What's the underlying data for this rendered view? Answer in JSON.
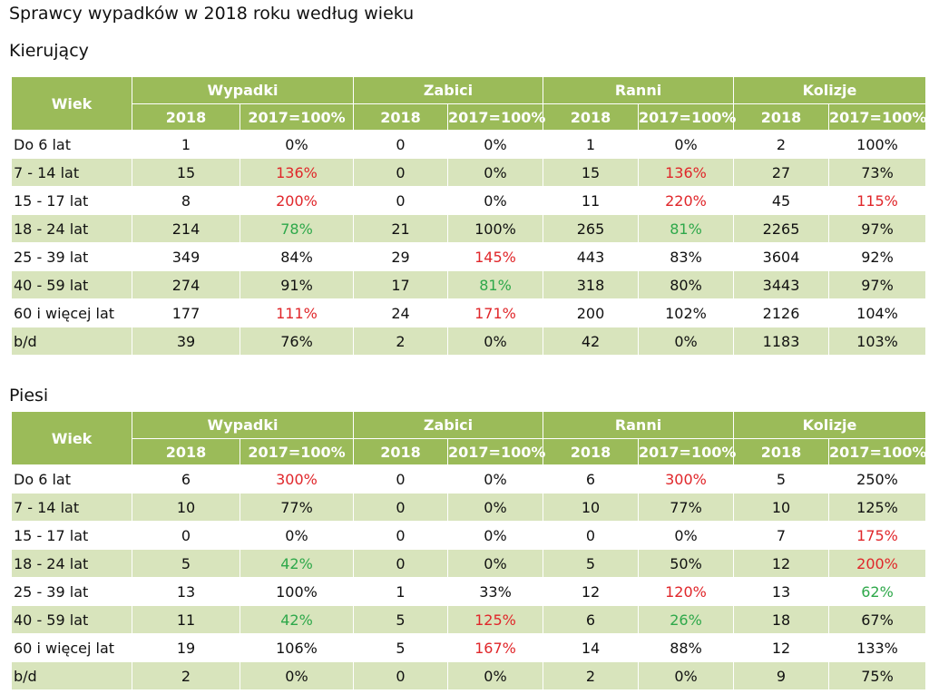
{
  "title": "Sprawcy wypadków w 2018 roku według wieku",
  "header": {
    "age": "Wiek",
    "groups": [
      "Wypadki",
      "Zabici",
      "Ranni",
      "Kolizje"
    ],
    "year": "2018",
    "ratio": "2017=100%"
  },
  "colors": {
    "header_bg": "#9bbb59",
    "alt_row": "#d8e4bc",
    "increase": "#e0262a",
    "decrease": "#2ea84a"
  },
  "tables": [
    {
      "title": "Kierujący",
      "rows": [
        {
          "age": "Do 6 lat",
          "cells": [
            {
              "v": "1"
            },
            {
              "v": "0%"
            },
            {
              "v": "0"
            },
            {
              "v": "0%"
            },
            {
              "v": "1"
            },
            {
              "v": "0%"
            },
            {
              "v": "2"
            },
            {
              "v": "100%"
            }
          ]
        },
        {
          "age": "7 - 14 lat",
          "cells": [
            {
              "v": "15"
            },
            {
              "v": "136%",
              "c": "red"
            },
            {
              "v": "0"
            },
            {
              "v": "0%"
            },
            {
              "v": "15"
            },
            {
              "v": "136%",
              "c": "red"
            },
            {
              "v": "27"
            },
            {
              "v": "73%"
            }
          ]
        },
        {
          "age": "15 - 17 lat",
          "cells": [
            {
              "v": "8"
            },
            {
              "v": "200%",
              "c": "red"
            },
            {
              "v": "0"
            },
            {
              "v": "0%"
            },
            {
              "v": "11"
            },
            {
              "v": "220%",
              "c": "red"
            },
            {
              "v": "45"
            },
            {
              "v": "115%",
              "c": "red"
            }
          ]
        },
        {
          "age": "18 - 24 lat",
          "cells": [
            {
              "v": "214"
            },
            {
              "v": "78%",
              "c": "green"
            },
            {
              "v": "21"
            },
            {
              "v": "100%"
            },
            {
              "v": "265"
            },
            {
              "v": "81%",
              "c": "green"
            },
            {
              "v": "2265"
            },
            {
              "v": "97%"
            }
          ]
        },
        {
          "age": "25 - 39 lat",
          "cells": [
            {
              "v": "349"
            },
            {
              "v": "84%"
            },
            {
              "v": "29"
            },
            {
              "v": "145%",
              "c": "red"
            },
            {
              "v": "443"
            },
            {
              "v": "83%"
            },
            {
              "v": "3604"
            },
            {
              "v": "92%"
            }
          ]
        },
        {
          "age": "40 - 59 lat",
          "cells": [
            {
              "v": "274"
            },
            {
              "v": "91%"
            },
            {
              "v": "17"
            },
            {
              "v": "81%",
              "c": "green"
            },
            {
              "v": "318"
            },
            {
              "v": "80%"
            },
            {
              "v": "3443"
            },
            {
              "v": "97%"
            }
          ]
        },
        {
          "age": "60 i więcej lat",
          "cells": [
            {
              "v": "177"
            },
            {
              "v": "111%",
              "c": "red"
            },
            {
              "v": "24"
            },
            {
              "v": "171%",
              "c": "red"
            },
            {
              "v": "200"
            },
            {
              "v": "102%"
            },
            {
              "v": "2126"
            },
            {
              "v": "104%"
            }
          ]
        },
        {
          "age": "b/d",
          "cells": [
            {
              "v": "39"
            },
            {
              "v": "76%"
            },
            {
              "v": "2"
            },
            {
              "v": "0%"
            },
            {
              "v": "42"
            },
            {
              "v": "0%"
            },
            {
              "v": "1183"
            },
            {
              "v": "103%"
            }
          ]
        }
      ]
    },
    {
      "title": "Piesi",
      "rows": [
        {
          "age": "Do 6 lat",
          "cells": [
            {
              "v": "6"
            },
            {
              "v": "300%",
              "c": "red"
            },
            {
              "v": "0"
            },
            {
              "v": "0%"
            },
            {
              "v": "6"
            },
            {
              "v": "300%",
              "c": "red"
            },
            {
              "v": "5"
            },
            {
              "v": "250%"
            }
          ]
        },
        {
          "age": "7 - 14 lat",
          "cells": [
            {
              "v": "10"
            },
            {
              "v": "77%"
            },
            {
              "v": "0"
            },
            {
              "v": "0%"
            },
            {
              "v": "10"
            },
            {
              "v": "77%"
            },
            {
              "v": "10"
            },
            {
              "v": "125%"
            }
          ]
        },
        {
          "age": "15 - 17 lat",
          "cells": [
            {
              "v": "0"
            },
            {
              "v": "0%"
            },
            {
              "v": "0"
            },
            {
              "v": "0%"
            },
            {
              "v": "0"
            },
            {
              "v": "0%"
            },
            {
              "v": "7"
            },
            {
              "v": "175%",
              "c": "red"
            }
          ]
        },
        {
          "age": "18 - 24 lat",
          "cells": [
            {
              "v": "5"
            },
            {
              "v": "42%",
              "c": "green"
            },
            {
              "v": "0"
            },
            {
              "v": "0%"
            },
            {
              "v": "5"
            },
            {
              "v": "50%"
            },
            {
              "v": "12"
            },
            {
              "v": "200%",
              "c": "red"
            }
          ]
        },
        {
          "age": "25 - 39 lat",
          "cells": [
            {
              "v": "13"
            },
            {
              "v": "100%"
            },
            {
              "v": "1"
            },
            {
              "v": "33%"
            },
            {
              "v": "12"
            },
            {
              "v": "120%",
              "c": "red"
            },
            {
              "v": "13"
            },
            {
              "v": "62%",
              "c": "green"
            }
          ]
        },
        {
          "age": "40 - 59 lat",
          "cells": [
            {
              "v": "11"
            },
            {
              "v": "42%",
              "c": "green"
            },
            {
              "v": "5"
            },
            {
              "v": "125%",
              "c": "red"
            },
            {
              "v": "6"
            },
            {
              "v": "26%",
              "c": "green"
            },
            {
              "v": "18"
            },
            {
              "v": "67%"
            }
          ]
        },
        {
          "age": "60 i więcej lat",
          "cells": [
            {
              "v": "19"
            },
            {
              "v": "106%"
            },
            {
              "v": "5"
            },
            {
              "v": "167%",
              "c": "red"
            },
            {
              "v": "14"
            },
            {
              "v": "88%"
            },
            {
              "v": "12"
            },
            {
              "v": "133%"
            }
          ]
        },
        {
          "age": "b/d",
          "cells": [
            {
              "v": "2"
            },
            {
              "v": "0%"
            },
            {
              "v": "0"
            },
            {
              "v": "0%"
            },
            {
              "v": "2"
            },
            {
              "v": "0%"
            },
            {
              "v": "9"
            },
            {
              "v": "75%"
            }
          ]
        }
      ]
    }
  ]
}
